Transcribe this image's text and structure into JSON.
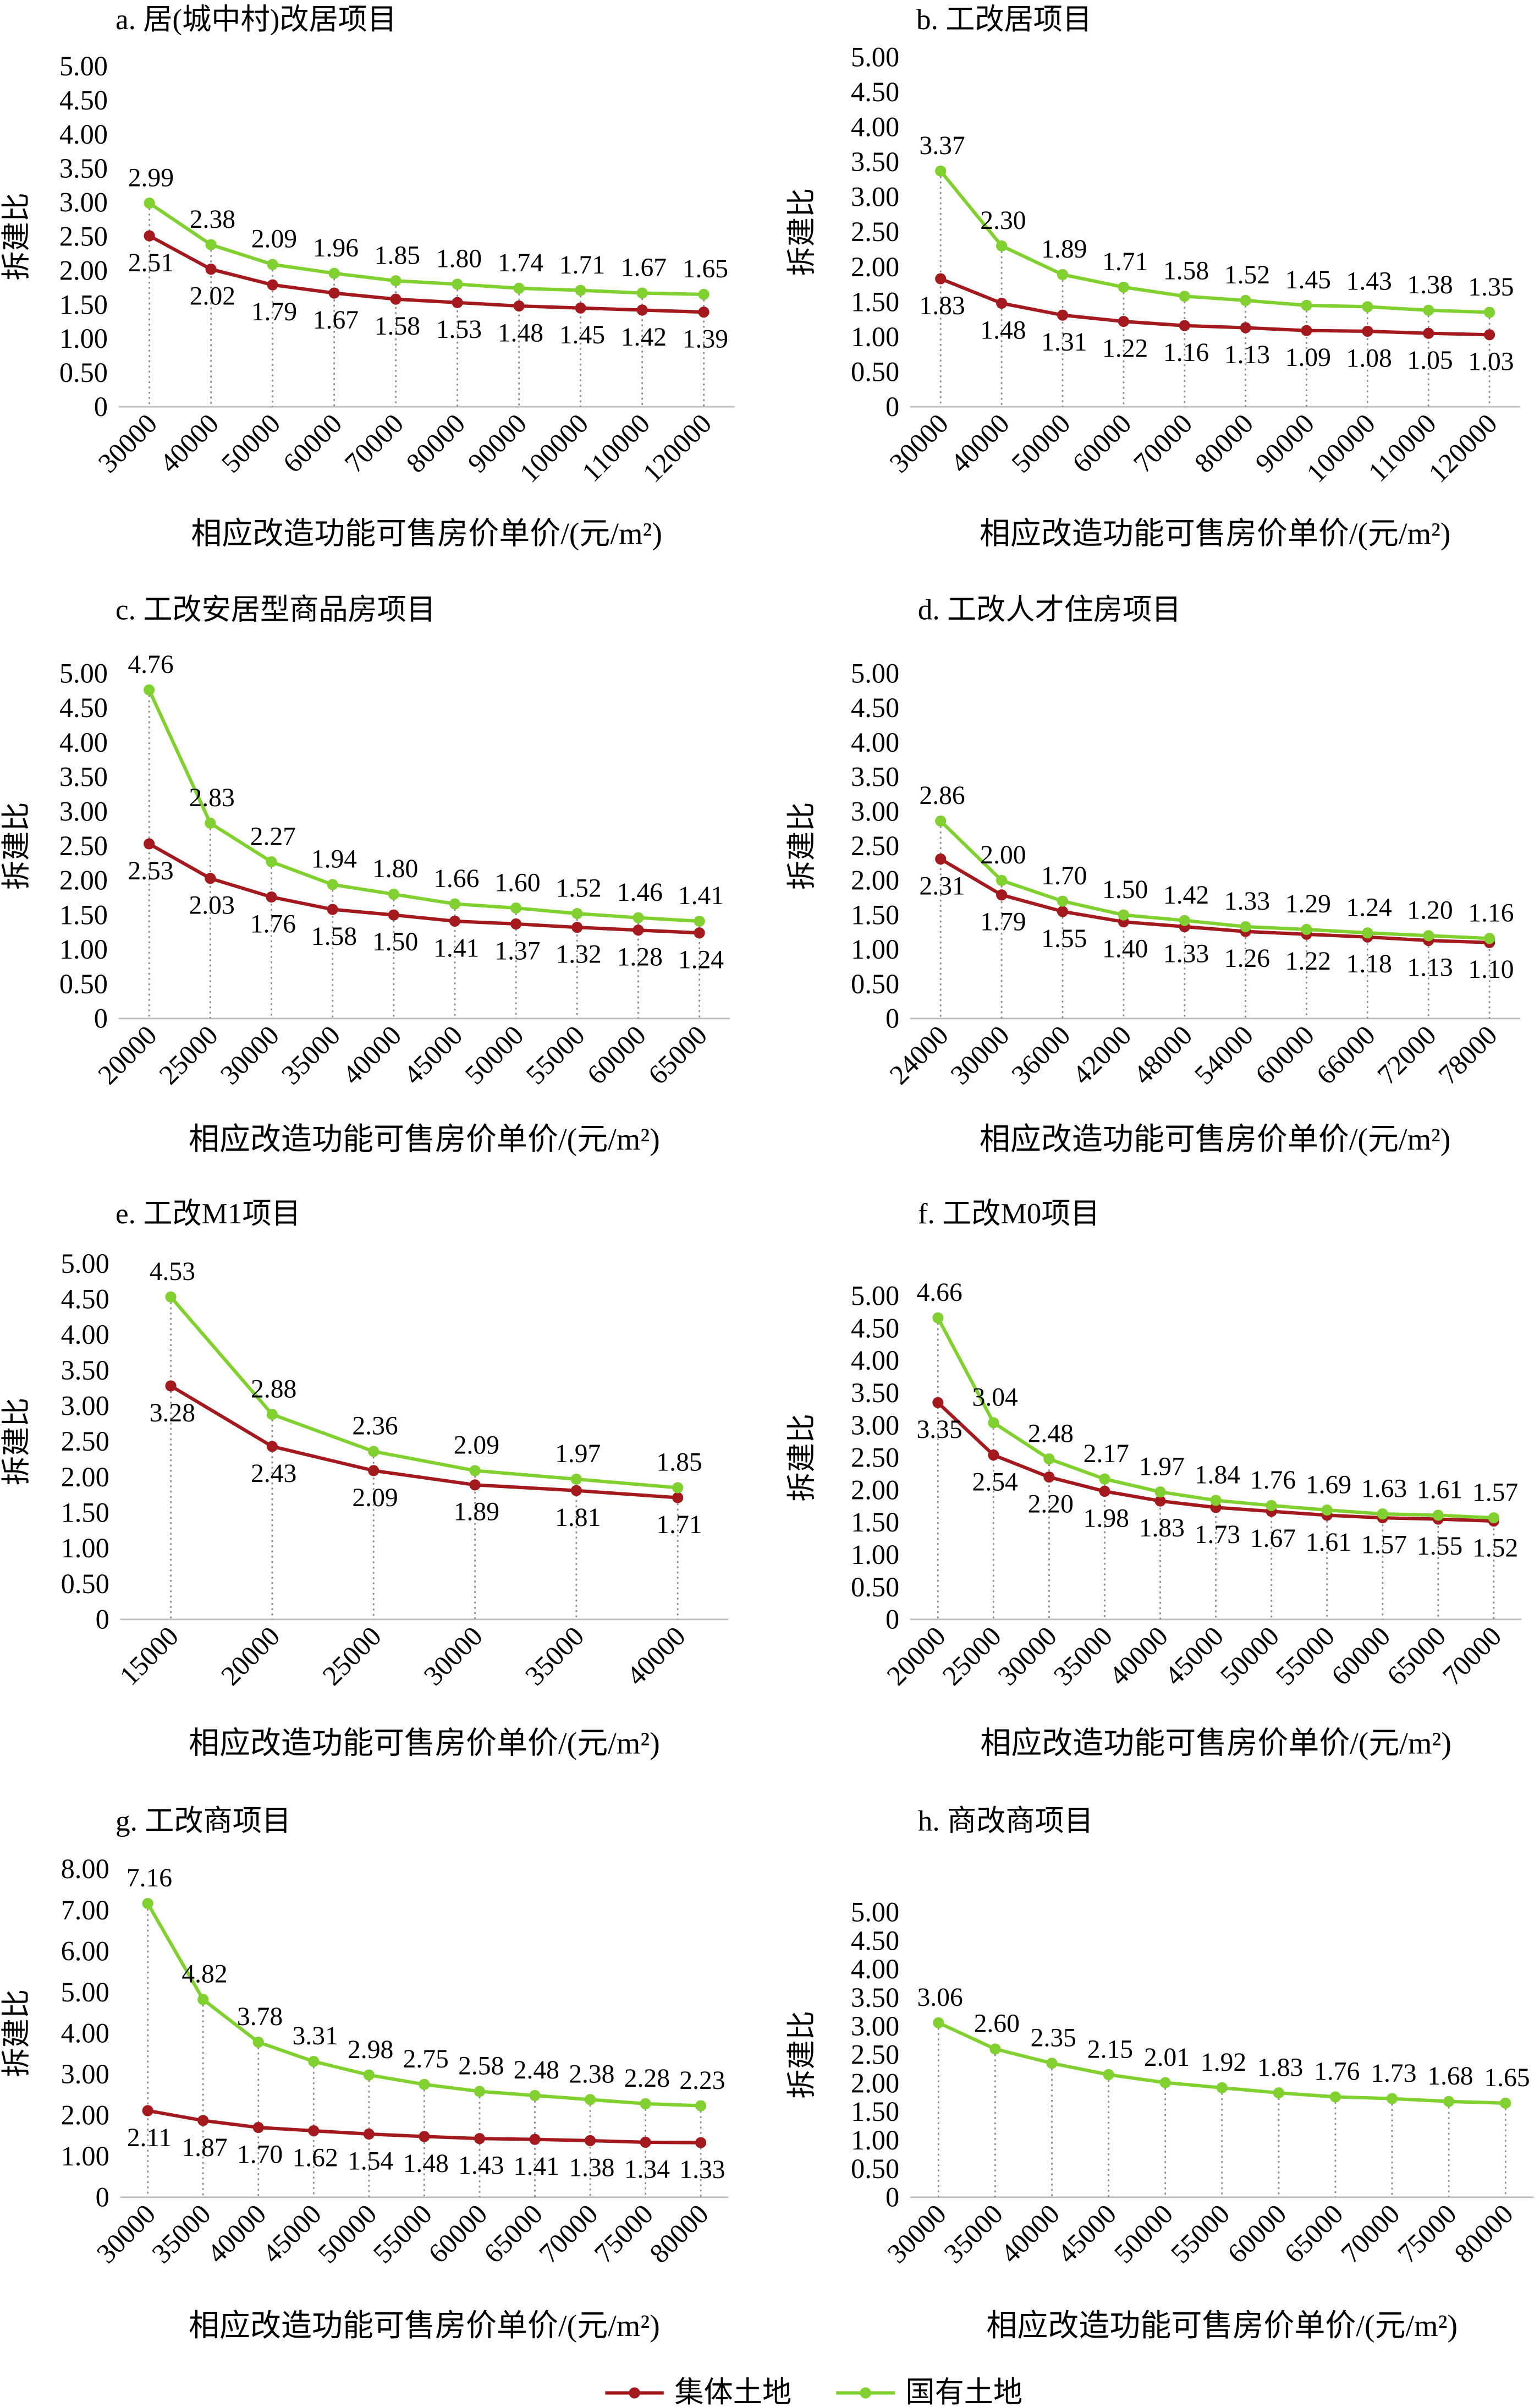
{
  "legend": {
    "position": "bottom",
    "items": [
      {
        "name": "集体土地",
        "color": "#A3191D"
      },
      {
        "name": "国有土地",
        "color": "#80D12F"
      }
    ]
  },
  "chart_data": [
    {
      "type": "line",
      "title": "a. 居(城中村)改居项目",
      "xlabel": "相应改造功能可售房价单价/(元/m²)",
      "ylabel": "拆建比",
      "ylim": [
        0,
        5
      ],
      "yticks": [
        "0",
        "0.50",
        "1.00",
        "1.50",
        "2.00",
        "2.50",
        "3.00",
        "3.50",
        "4.00",
        "4.50",
        "5.00"
      ],
      "x": [
        30000,
        40000,
        50000,
        60000,
        70000,
        80000,
        90000,
        100000,
        110000,
        120000
      ],
      "series": [
        {
          "name": "集体土地",
          "color": "#A3191D",
          "values": [
            2.51,
            2.02,
            1.79,
            1.67,
            1.58,
            1.53,
            1.48,
            1.45,
            1.42,
            1.39
          ]
        },
        {
          "name": "国有土地",
          "color": "#80D12F",
          "values": [
            2.99,
            2.38,
            2.09,
            1.96,
            1.85,
            1.8,
            1.74,
            1.71,
            1.67,
            1.65
          ]
        }
      ],
      "grid": false,
      "legend": "bottom"
    },
    {
      "type": "line",
      "title": "b. 工改居项目",
      "xlabel": "相应改造功能可售房价单价/(元/m²)",
      "ylabel": "拆建比",
      "ylim": [
        0,
        5
      ],
      "yticks": [
        "0",
        "0.50",
        "1.00",
        "1.50",
        "2.00",
        "2.50",
        "3.00",
        "3.50",
        "4.00",
        "4.50",
        "5.00"
      ],
      "x": [
        30000,
        40000,
        50000,
        60000,
        70000,
        80000,
        90000,
        100000,
        110000,
        120000
      ],
      "series": [
        {
          "name": "集体土地",
          "color": "#A3191D",
          "values": [
            1.83,
            1.48,
            1.31,
            1.22,
            1.16,
            1.13,
            1.09,
            1.08,
            1.05,
            1.03
          ]
        },
        {
          "name": "国有土地",
          "color": "#80D12F",
          "values": [
            3.37,
            2.3,
            1.89,
            1.71,
            1.58,
            1.52,
            1.45,
            1.43,
            1.38,
            1.35
          ]
        }
      ],
      "grid": false,
      "legend": "bottom"
    },
    {
      "type": "line",
      "title": "c. 工改安居型商品房项目",
      "xlabel": "相应改造功能可售房价单价/(元/m²)",
      "ylabel": "拆建比",
      "ylim": [
        0,
        5
      ],
      "yticks": [
        "0",
        "0.50",
        "1.00",
        "1.50",
        "2.00",
        "2.50",
        "3.00",
        "3.50",
        "4.00",
        "4.50",
        "5.00"
      ],
      "x": [
        20000,
        25000,
        30000,
        35000,
        40000,
        45000,
        50000,
        55000,
        60000,
        65000
      ],
      "series": [
        {
          "name": "集体土地",
          "color": "#A3191D",
          "values": [
            2.53,
            2.03,
            1.76,
            1.58,
            1.5,
            1.41,
            1.37,
            1.32,
            1.28,
            1.24
          ]
        },
        {
          "name": "国有土地",
          "color": "#80D12F",
          "values": [
            4.76,
            2.83,
            2.27,
            1.94,
            1.8,
            1.66,
            1.6,
            1.52,
            1.46,
            1.41
          ]
        }
      ],
      "grid": false,
      "legend": "bottom"
    },
    {
      "type": "line",
      "title": "d. 工改人才住房项目",
      "xlabel": "相应改造功能可售房价单价/(元/m²)",
      "ylabel": "拆建比",
      "ylim": [
        0,
        5
      ],
      "yticks": [
        "0",
        "0.50",
        "1.00",
        "1.50",
        "2.00",
        "2.50",
        "3.00",
        "3.50",
        "4.00",
        "4.50",
        "5.00"
      ],
      "x": [
        24000,
        30000,
        36000,
        42000,
        48000,
        54000,
        60000,
        66000,
        72000,
        78000
      ],
      "series": [
        {
          "name": "集体土地",
          "color": "#A3191D",
          "values": [
            2.31,
            1.79,
            1.55,
            1.4,
            1.33,
            1.26,
            1.22,
            1.18,
            1.13,
            1.1
          ]
        },
        {
          "name": "国有土地",
          "color": "#80D12F",
          "values": [
            2.86,
            2.0,
            1.7,
            1.5,
            1.42,
            1.33,
            1.29,
            1.24,
            1.2,
            1.16
          ]
        }
      ],
      "grid": false,
      "legend": "bottom"
    },
    {
      "type": "line",
      "title": "e. 工改M1项目",
      "xlabel": "相应改造功能可售房价单价/(元/m²)",
      "ylabel": "拆建比",
      "ylim": [
        0,
        5
      ],
      "yticks": [
        "0",
        "0.50",
        "1.00",
        "1.50",
        "2.00",
        "2.50",
        "3.00",
        "3.50",
        "4.00",
        "4.50",
        "5.00"
      ],
      "x": [
        15000,
        20000,
        25000,
        30000,
        35000,
        40000
      ],
      "series": [
        {
          "name": "集体土地",
          "color": "#A3191D",
          "values": [
            3.28,
            2.43,
            2.09,
            1.89,
            1.81,
            1.71
          ]
        },
        {
          "name": "国有土地",
          "color": "#80D12F",
          "values": [
            4.53,
            2.88,
            2.36,
            2.09,
            1.97,
            1.85
          ]
        }
      ],
      "grid": false,
      "legend": "bottom"
    },
    {
      "type": "line",
      "title": "f. 工改M0项目",
      "xlabel": "相应改造功能可售房价单价/(元/m²)",
      "ylabel": "拆建比",
      "ylim": [
        0,
        5
      ],
      "yticks": [
        "0",
        "0.50",
        "1.00",
        "1.50",
        "2.00",
        "2.50",
        "3.00",
        "3.50",
        "4.00",
        "4.50",
        "5.00"
      ],
      "x": [
        20000,
        25000,
        30000,
        35000,
        40000,
        45000,
        50000,
        55000,
        60000,
        65000,
        70000
      ],
      "series": [
        {
          "name": "集体土地",
          "color": "#A3191D",
          "values": [
            3.35,
            2.54,
            2.2,
            1.98,
            1.83,
            1.73,
            1.67,
            1.61,
            1.57,
            1.55,
            1.52
          ]
        },
        {
          "name": "国有土地",
          "color": "#80D12F",
          "values": [
            4.66,
            3.04,
            2.48,
            2.17,
            1.97,
            1.84,
            1.76,
            1.69,
            1.63,
            1.61,
            1.57
          ]
        }
      ],
      "grid": false,
      "legend": "bottom"
    },
    {
      "type": "line",
      "title": "g. 工改商项目",
      "xlabel": "相应改造功能可售房价单价/(元/m²)",
      "ylabel": "拆建比",
      "ylim": [
        0,
        8
      ],
      "yticks": [
        "0",
        "1.00",
        "2.00",
        "3.00",
        "4.00",
        "5.00",
        "6.00",
        "7.00",
        "8.00"
      ],
      "x": [
        30000,
        35000,
        40000,
        45000,
        50000,
        55000,
        60000,
        65000,
        70000,
        75000,
        80000
      ],
      "series": [
        {
          "name": "集体土地",
          "color": "#A3191D",
          "values": [
            2.11,
            1.87,
            1.7,
            1.62,
            1.54,
            1.48,
            1.43,
            1.41,
            1.38,
            1.34,
            1.33
          ]
        },
        {
          "name": "国有土地",
          "color": "#80D12F",
          "values": [
            7.16,
            4.82,
            3.78,
            3.31,
            2.98,
            2.75,
            2.58,
            2.48,
            2.38,
            2.28,
            2.23
          ]
        }
      ],
      "grid": false,
      "legend": "bottom"
    },
    {
      "type": "line",
      "title": "h. 商改商项目",
      "xlabel": "相应改造功能可售房价单价/(元/m²)",
      "ylabel": "拆建比",
      "ylim": [
        0,
        5
      ],
      "yticks": [
        "0",
        "0.50",
        "1.00",
        "1.50",
        "2.00",
        "2.50",
        "3.00",
        "3.50",
        "4.00",
        "4.50",
        "5.00"
      ],
      "x": [
        30000,
        35000,
        40000,
        45000,
        50000,
        55000,
        60000,
        65000,
        70000,
        75000,
        80000
      ],
      "series": [
        {
          "name": "国有土地",
          "color": "#80D12F",
          "values": [
            3.06,
            2.6,
            2.35,
            2.15,
            2.01,
            1.92,
            1.83,
            1.76,
            1.73,
            1.68,
            1.65
          ]
        }
      ],
      "grid": false,
      "legend": "bottom"
    }
  ]
}
